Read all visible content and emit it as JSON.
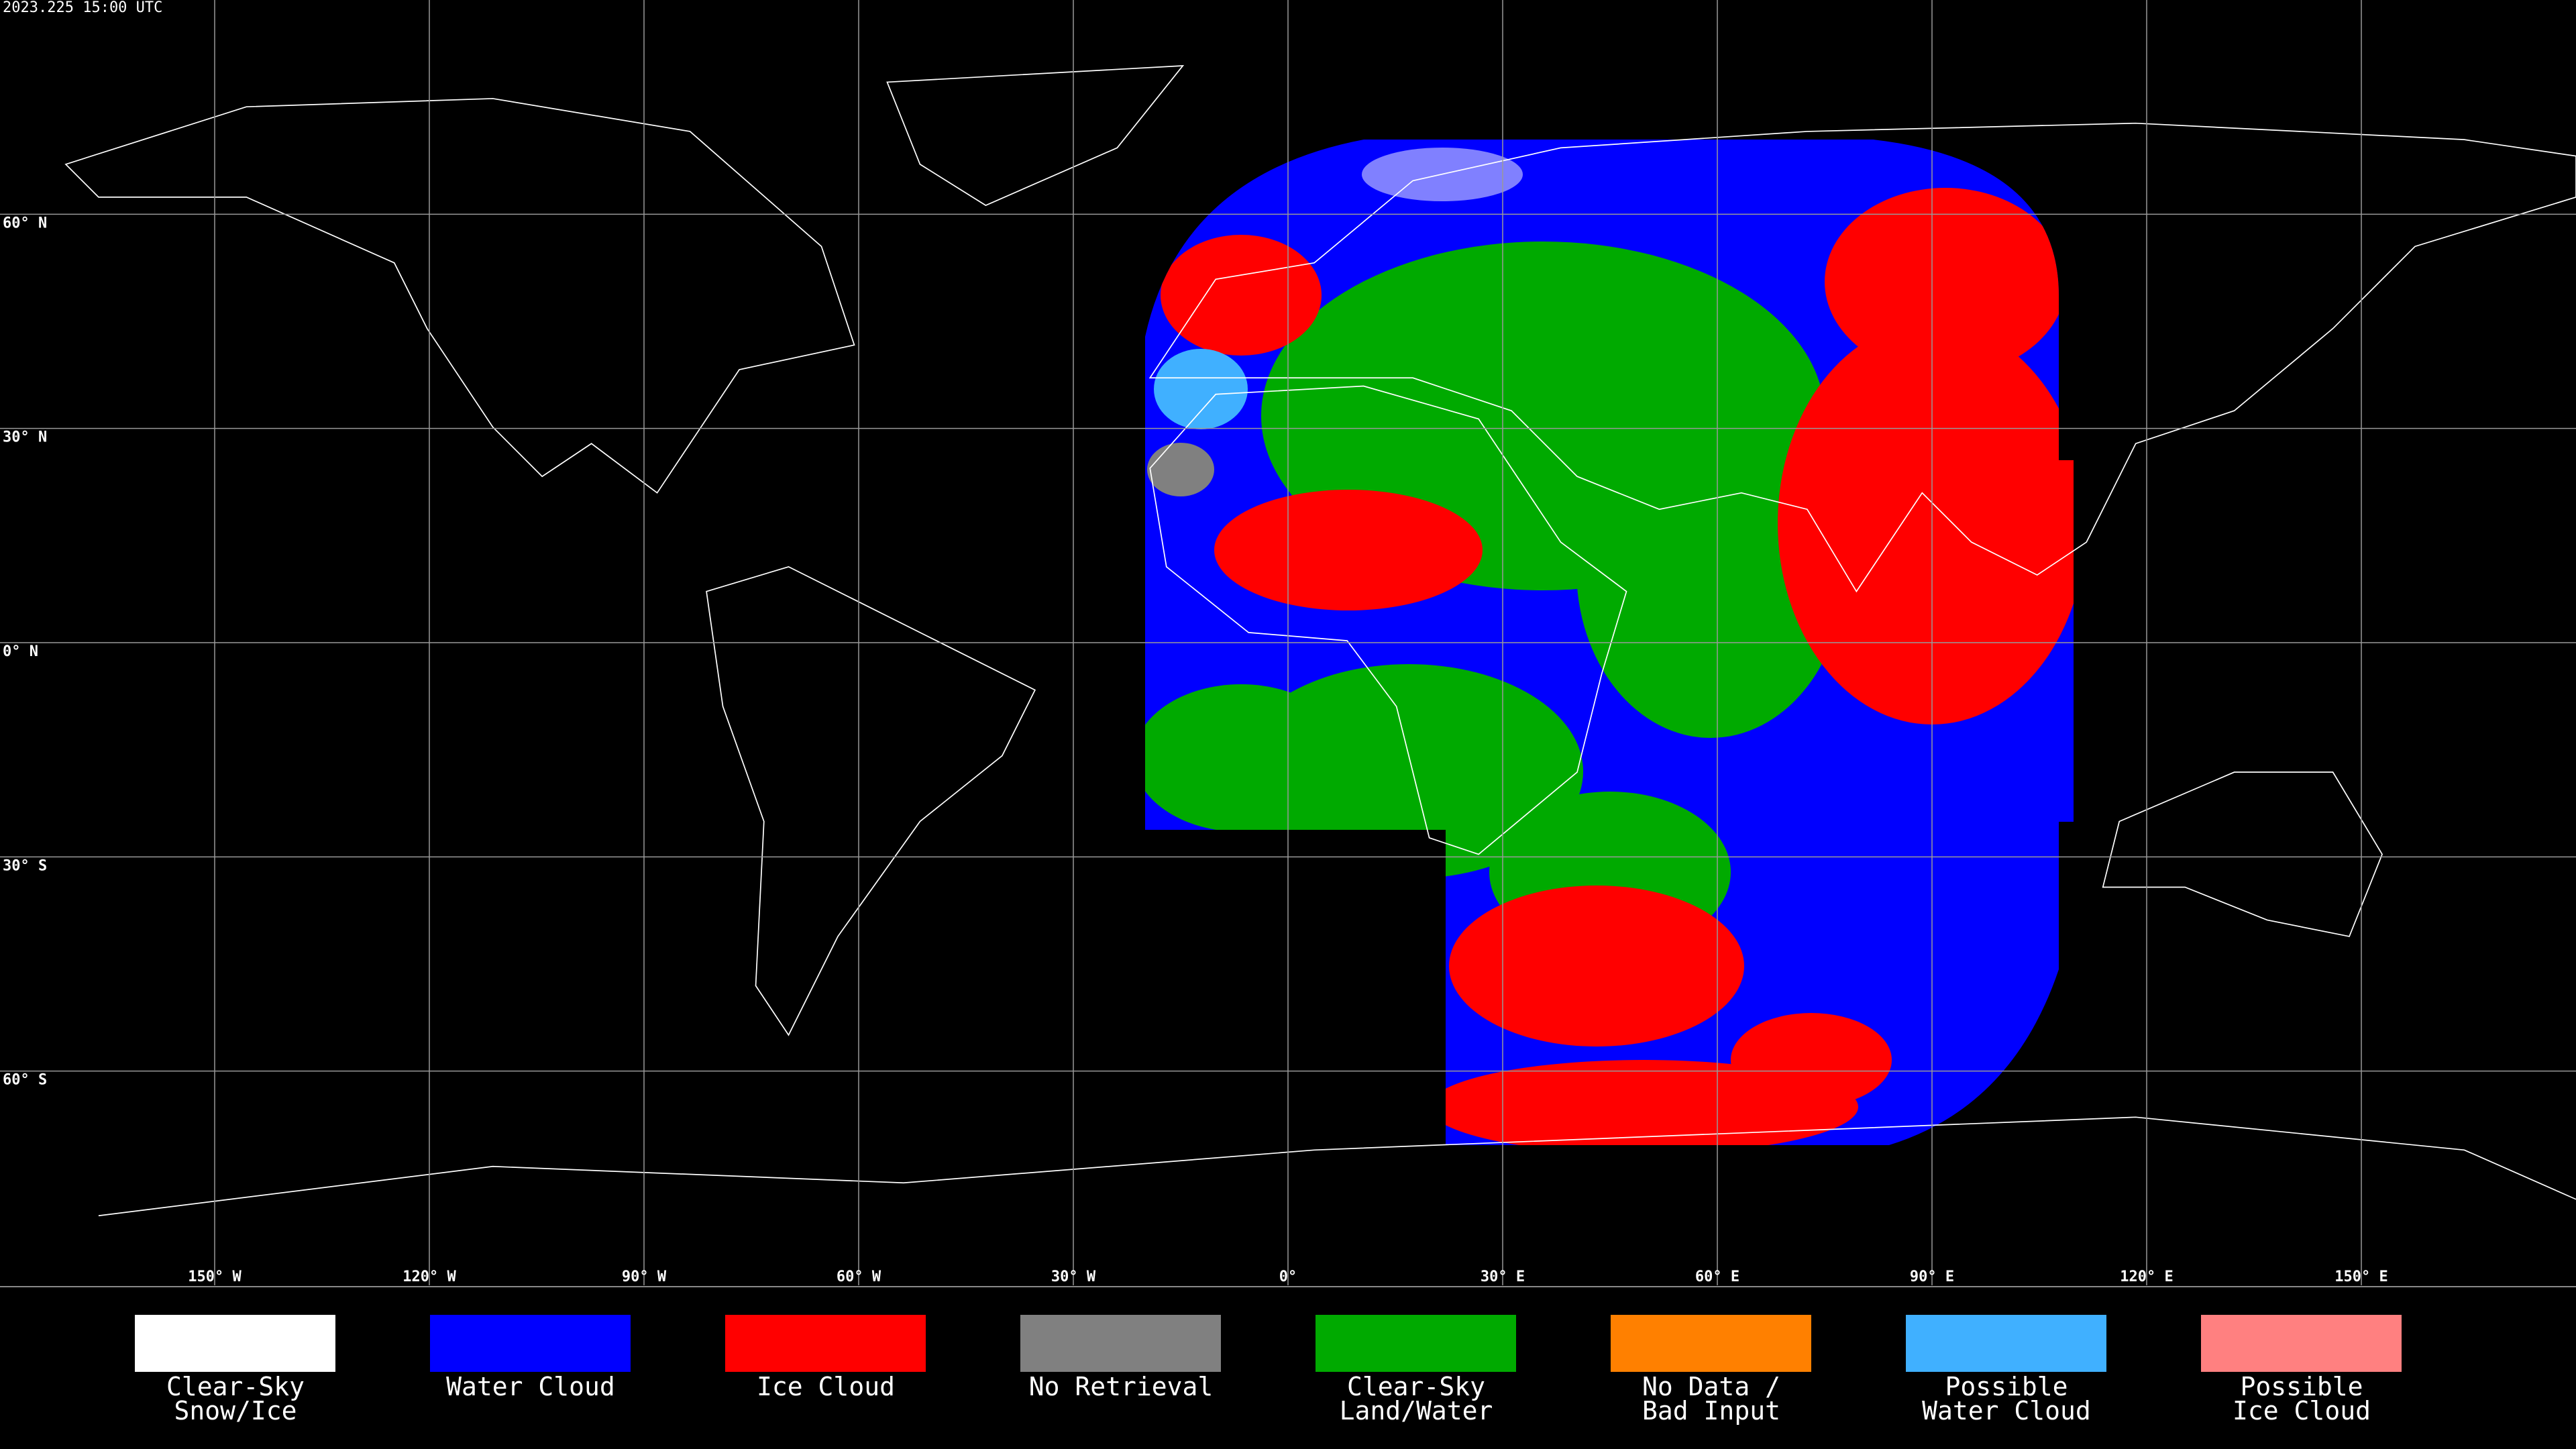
{
  "header": {
    "timestamp": "2023.225 15:00 UTC"
  },
  "map": {
    "lat_lines": [
      {
        "value": 60,
        "label": "60° N"
      },
      {
        "value": 30,
        "label": "30° N"
      },
      {
        "value": 0,
        "label": "0° N"
      },
      {
        "value": -30,
        "label": "30° S"
      },
      {
        "value": -60,
        "label": "60° S"
      }
    ],
    "lon_lines": [
      {
        "value": -150,
        "label": "150° W"
      },
      {
        "value": -120,
        "label": "120° W"
      },
      {
        "value": -90,
        "label": "90° W"
      },
      {
        "value": -60,
        "label": "60° W"
      },
      {
        "value": -30,
        "label": "30° W"
      },
      {
        "value": 0,
        "label": "0°"
      },
      {
        "value": 30,
        "label": "30° E"
      },
      {
        "value": 60,
        "label": "60° E"
      },
      {
        "value": 90,
        "label": "90° E"
      },
      {
        "value": 120,
        "label": "120° E"
      },
      {
        "value": 150,
        "label": "150° E"
      }
    ]
  },
  "legend": [
    {
      "label": [
        "Clear-Sky",
        "Snow/Ice"
      ],
      "color": "#ffffff"
    },
    {
      "label": [
        "Water Cloud"
      ],
      "color": "#0000ff"
    },
    {
      "label": [
        "Ice Cloud"
      ],
      "color": "#ff0000"
    },
    {
      "label": [
        "No Retrieval"
      ],
      "color": "#808080"
    },
    {
      "label": [
        "Clear-Sky",
        "Land/Water"
      ],
      "color": "#00aa00"
    },
    {
      "label": [
        "No Data /",
        "Bad Input"
      ],
      "color": "#ff8000"
    },
    {
      "label": [
        "Possible",
        "Water Cloud"
      ],
      "color": "#40b0ff"
    },
    {
      "label": [
        "Possible",
        "Ice Cloud"
      ],
      "color": "#ff8080"
    }
  ]
}
